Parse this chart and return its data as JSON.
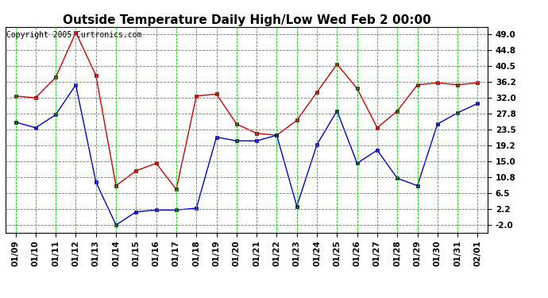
{
  "title": "Outside Temperature Daily High/Low Wed Feb 2 00:00",
  "copyright": "Copyright 2005 Curtronics.com",
  "x_labels": [
    "01/09",
    "01/10",
    "01/11",
    "01/12",
    "01/13",
    "01/14",
    "01/15",
    "01/16",
    "01/17",
    "01/18",
    "01/19",
    "01/20",
    "01/21",
    "01/22",
    "01/23",
    "01/24",
    "01/25",
    "01/26",
    "01/27",
    "01/28",
    "01/29",
    "01/30",
    "01/31",
    "02/01"
  ],
  "high_temps": [
    32.5,
    32.0,
    37.5,
    49.5,
    38.0,
    8.5,
    12.5,
    14.5,
    7.5,
    32.5,
    33.0,
    25.0,
    22.5,
    22.0,
    26.0,
    33.5,
    41.0,
    34.5,
    24.0,
    28.5,
    35.5,
    36.0,
    35.5,
    36.0
  ],
  "low_temps": [
    25.5,
    24.0,
    27.5,
    35.5,
    9.5,
    -2.0,
    1.5,
    2.0,
    2.0,
    2.5,
    21.5,
    20.5,
    20.5,
    22.0,
    3.0,
    19.5,
    28.5,
    14.5,
    18.0,
    10.5,
    8.5,
    25.0,
    28.0,
    30.5
  ],
  "high_color": "#cc0000",
  "low_color": "#0000cc",
  "background_color": "#ffffff",
  "plot_bg_color": "#ffffff",
  "grid_color": "#00cc00",
  "y_ticks": [
    -2.0,
    2.2,
    6.5,
    10.8,
    15.0,
    19.2,
    23.5,
    27.8,
    32.0,
    36.2,
    40.5,
    44.8,
    49.0
  ],
  "ylim": [
    -4.0,
    51.0
  ],
  "title_fontsize": 11,
  "tick_fontsize": 7.5,
  "copyright_fontsize": 7
}
